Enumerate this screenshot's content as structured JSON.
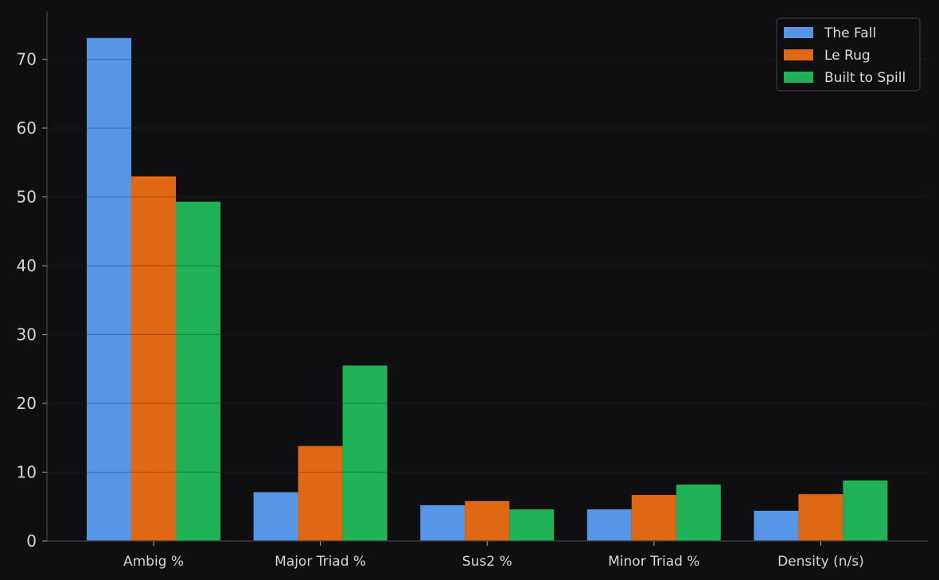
{
  "chart_data": {
    "type": "bar",
    "title": "",
    "xlabel": "",
    "ylabel": "",
    "categories": [
      "Ambig %",
      "Major Triad %",
      "Sus2 %",
      "Minor Triad %",
      "Density (n/s)"
    ],
    "series": [
      {
        "name": "The Fall",
        "color": "#5596e6",
        "values": [
          73.1,
          7.1,
          5.2,
          4.6,
          4.4
        ]
      },
      {
        "name": "Le Rug",
        "color": "#e06815",
        "values": [
          53.0,
          13.8,
          5.8,
          6.7,
          6.8
        ]
      },
      {
        "name": "Built to Spill",
        "color": "#20b257",
        "values": [
          49.3,
          25.5,
          4.6,
          8.2,
          8.8
        ]
      }
    ],
    "ylim": [
      0,
      77
    ],
    "yticks": [
      0,
      10,
      20,
      30,
      40,
      50,
      60,
      70
    ],
    "grid": "horizontal",
    "legend_position": "top-right",
    "colors": {
      "background": "#0f0f11",
      "axis": "#3a3a3a",
      "grid": "#1f1f22",
      "text": "#d6d6d6"
    }
  }
}
